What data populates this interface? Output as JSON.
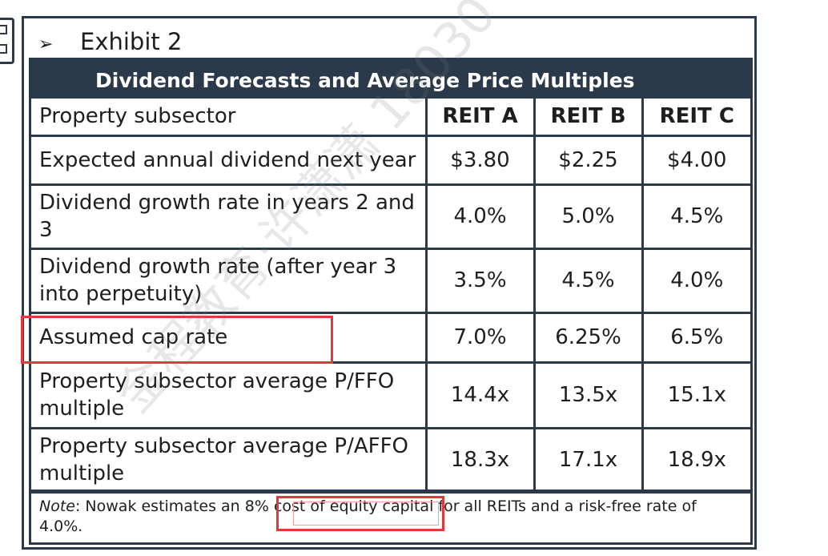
{
  "exhibit": {
    "bullet": "➢",
    "label": "Exhibit 2"
  },
  "table": {
    "title": "Dividend Forecasts and Average Price Multiples",
    "header": {
      "label": "Property subsector",
      "cols": [
        "REIT A",
        "REIT B",
        "REIT C"
      ]
    },
    "rows": [
      {
        "label": "Expected annual dividend next year",
        "values": [
          "$3.80",
          "$2.25",
          "$4.00"
        ]
      },
      {
        "label": "Dividend growth rate in years 2 and 3",
        "values": [
          "4.0%",
          "5.0%",
          "4.5%"
        ]
      },
      {
        "label": "Dividend growth rate (after year 3 into perpetuity)",
        "values": [
          "3.5%",
          "4.5%",
          "4.0%"
        ]
      },
      {
        "label": "Assumed cap rate",
        "values": [
          "7.0%",
          "6.25%",
          "6.5%"
        ]
      },
      {
        "label": "Property subsector average P/FFO multiple",
        "values": [
          "14.4x",
          "13.5x",
          "15.1x"
        ]
      },
      {
        "label": "Property subsector average P/AFFO multiple",
        "values": [
          "18.3x",
          "17.1x",
          "18.9x"
        ]
      }
    ],
    "note": {
      "prefix": "Note",
      "text": ": Nowak estimates an 8% cost of equity capital for all REITs and a risk-free rate of 4.0%."
    }
  },
  "watermark": "金程教育·许潇潇 18030",
  "colors": {
    "header_bg": "#2b3a4a",
    "highlight": "#e23a3a"
  }
}
